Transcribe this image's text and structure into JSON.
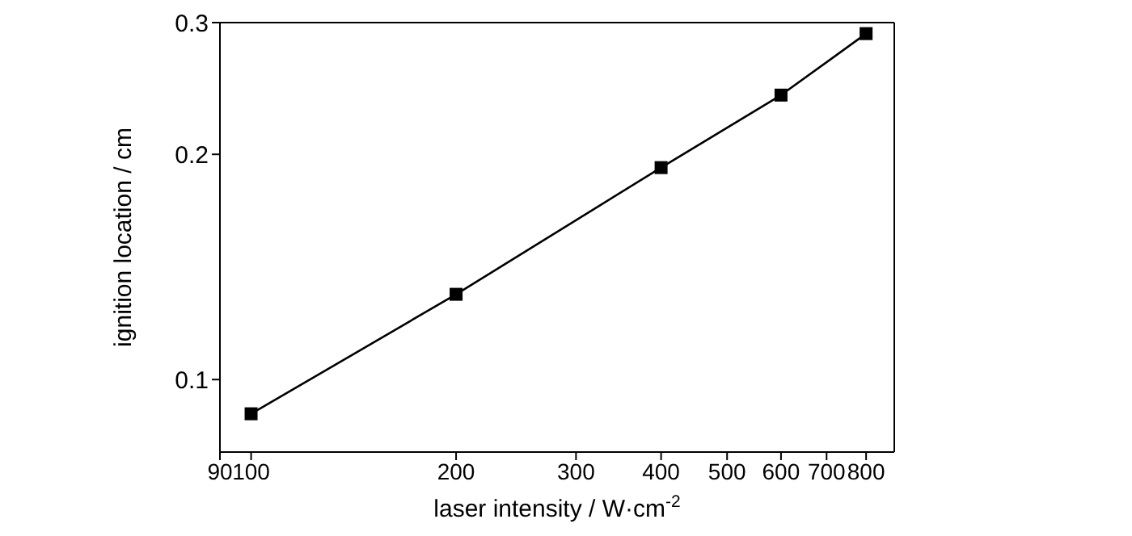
{
  "chart_data": {
    "type": "line",
    "xlabel": "laser intensity / W·cm$^{-2}$",
    "ylabel": "ignition location / cm",
    "x": [
      100,
      200,
      400,
      600,
      800
    ],
    "series": [
      {
        "color": "#000000",
        "values": [
          0.09,
          0.13,
          0.192,
          0.24,
          0.29
        ]
      }
    ],
    "log": "xy",
    "xlim": [
      90,
      880
    ],
    "xticks": [
      90,
      100,
      200,
      300,
      400,
      500,
      600,
      700,
      800
    ],
    "ylim": [
      0.08,
      0.3
    ],
    "yticks": [
      0.1,
      0.2,
      0.3
    ],
    "marker": "square",
    "line_style": "solid",
    "grid": false,
    "legend": false
  }
}
